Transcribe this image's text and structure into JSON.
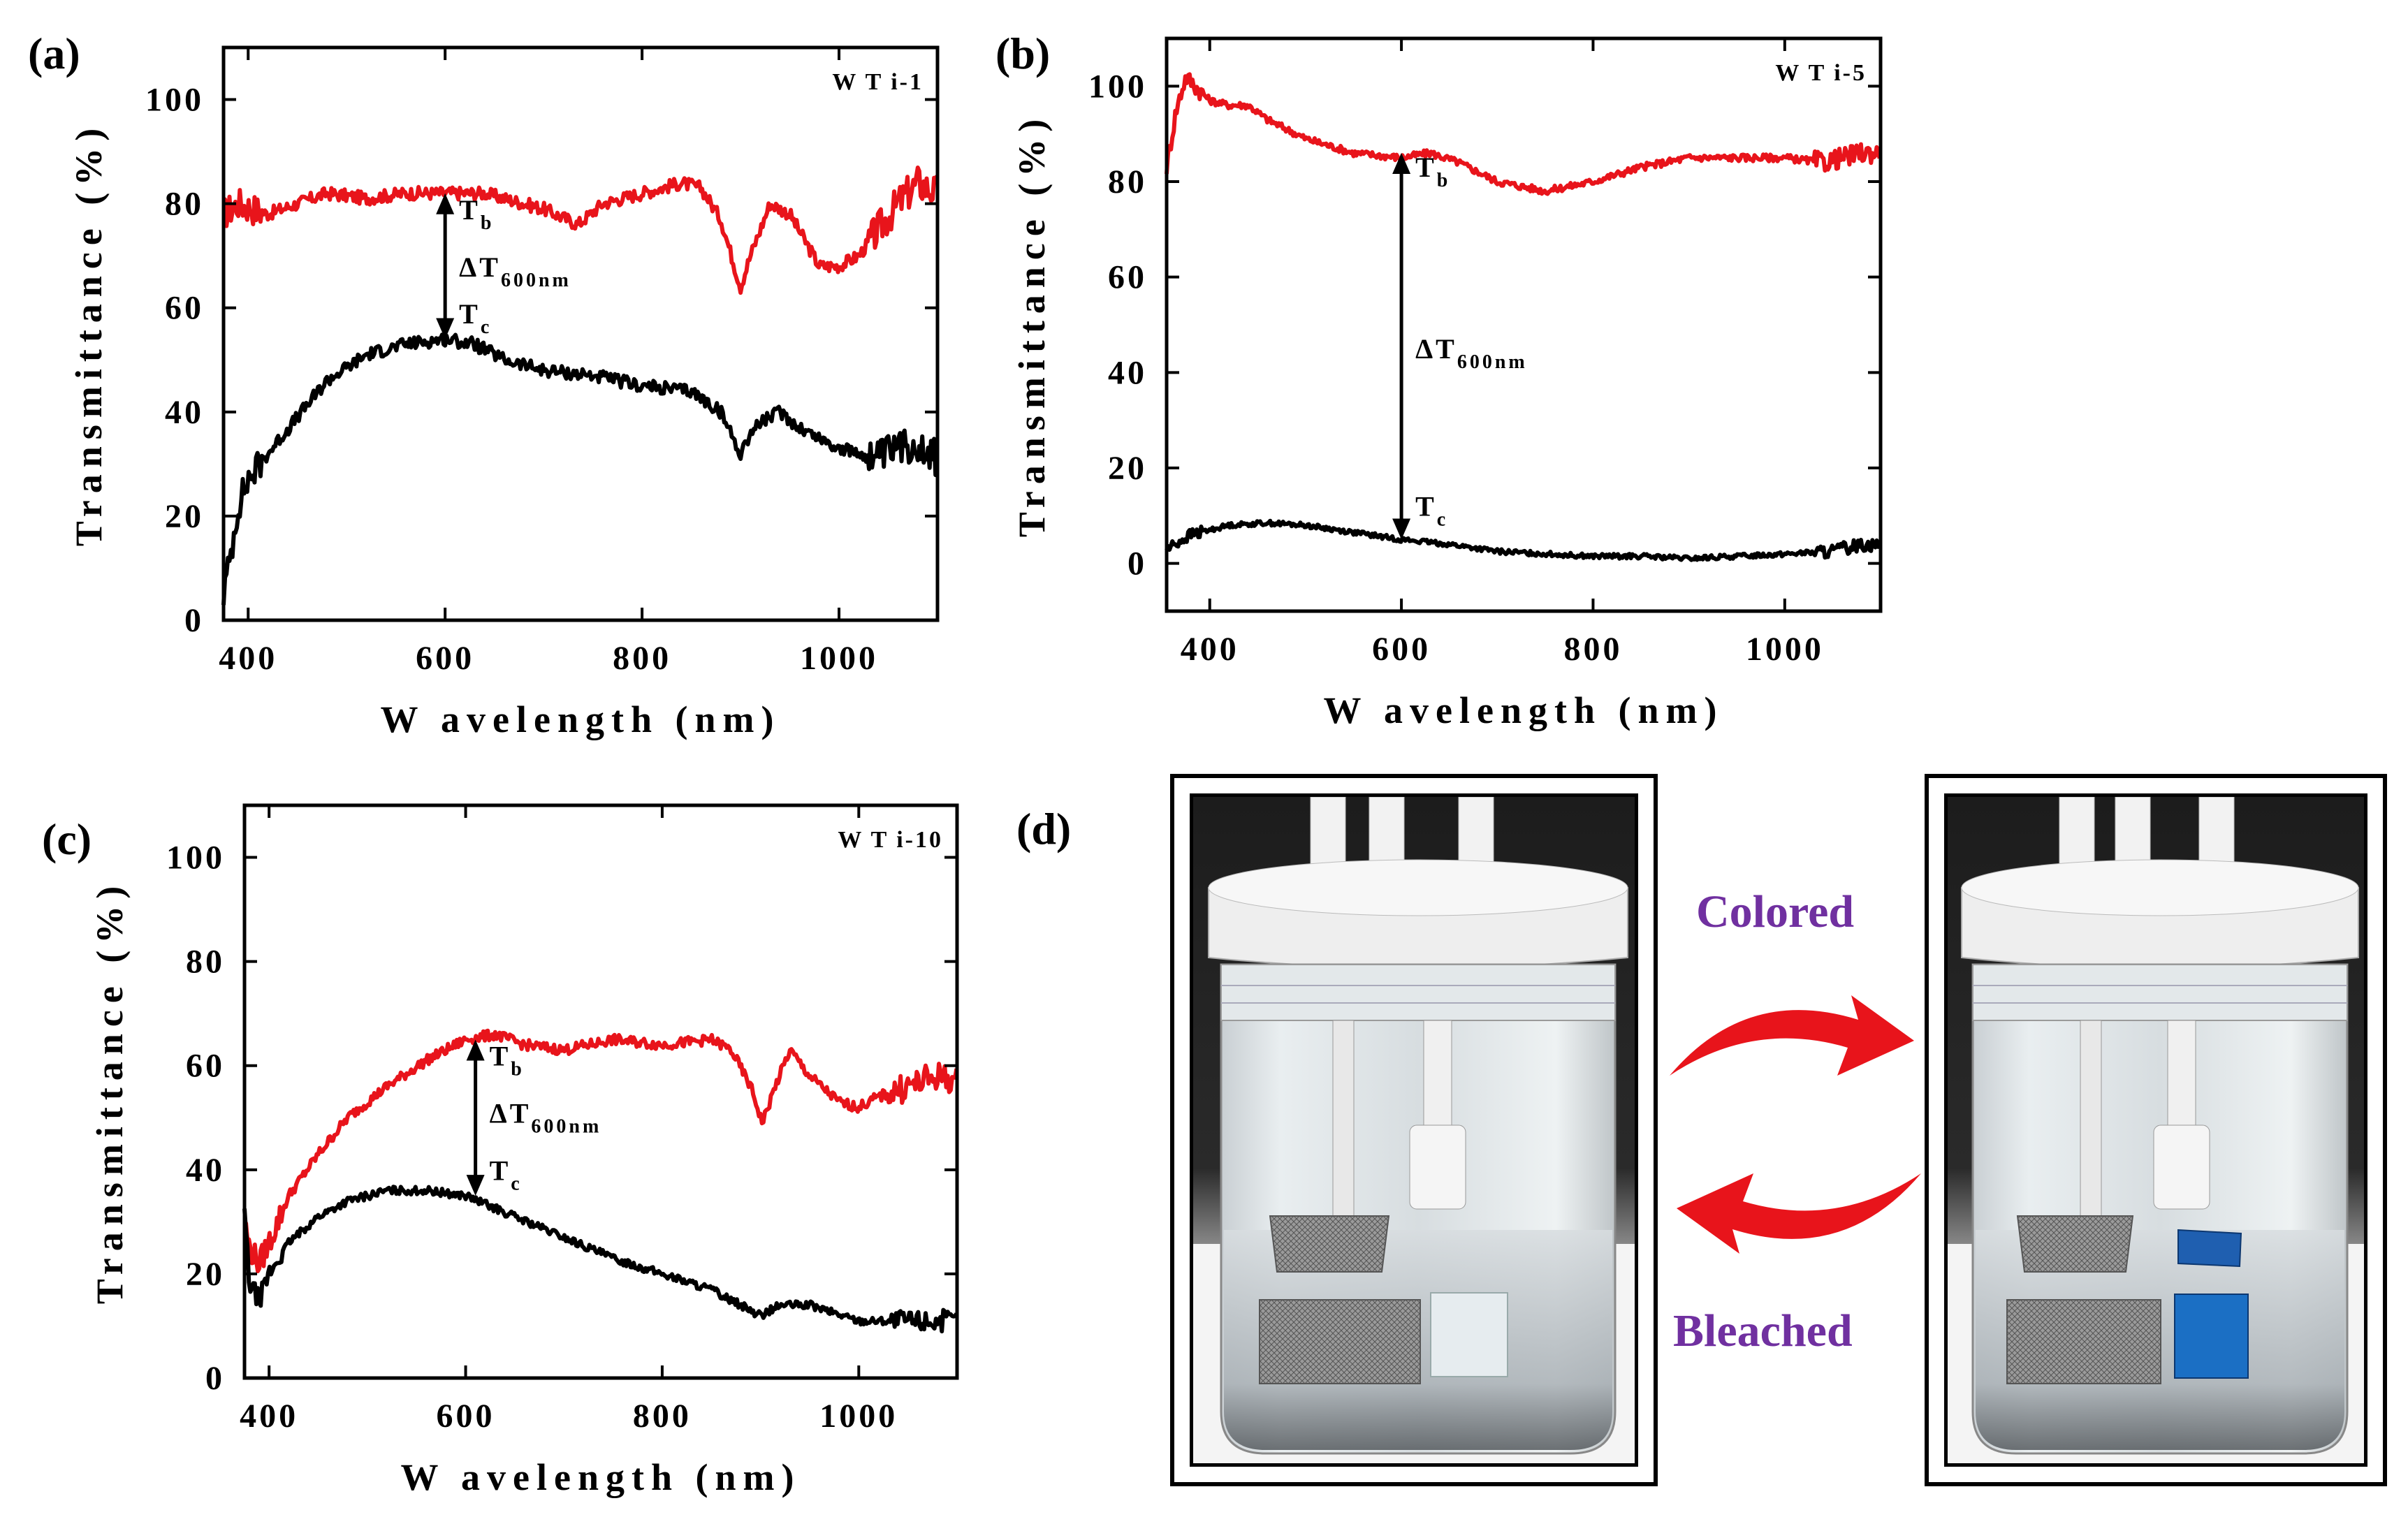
{
  "panels": [
    {
      "label": "(a)",
      "sample": "W T i-1",
      "chart_data": {
        "type": "line",
        "xlabel": "W avelength (nm)",
        "ylabel": "Transmittance (%)",
        "xlim": [
          375,
          1100
        ],
        "ylim": [
          0,
          110
        ],
        "xticks": [
          400,
          600,
          800,
          1000
        ],
        "yticks": [
          0,
          20,
          40,
          60,
          80,
          100
        ],
        "series": [
          {
            "color": "#e8141b",
            "noise": 2.5,
            "x": [
              375,
              390,
              420,
              450,
              480,
              520,
              560,
              600,
              640,
              680,
              700,
              735,
              760,
              800,
              840,
              860,
              880,
              900,
              910,
              930,
              950,
              980,
              1000,
              1020,
              1040,
              1060,
              1080,
              1100
            ],
            "y": [
              78,
              80,
              78,
              80,
              82,
              81,
              82,
              82,
              82,
              80,
              79,
              76,
              80,
              82,
              84,
              83,
              77,
              64,
              70,
              80,
              78,
              68,
              68,
              70,
              75,
              80,
              84,
              82
            ]
          },
          {
            "color": "#000000",
            "noise": 2.5,
            "x": [
              375,
              380,
              390,
              400,
              420,
              450,
              480,
              520,
              560,
              600,
              630,
              660,
              700,
              750,
              800,
              850,
              880,
              900,
              910,
              920,
              940,
              960,
              1000,
              1040,
              1060,
              1080,
              1100
            ],
            "y": [
              5,
              10,
              22,
              27,
              32,
              39,
              46,
              51,
              53,
              54,
              53,
              50,
              48,
              47,
              45,
              44,
              40,
              32,
              36,
              38,
              40,
              37,
              33,
              31,
              33,
              34,
              31
            ]
          }
        ],
        "annotations": {
          "arrow_x": 600,
          "arrow_y_top": 82,
          "arrow_y_bottom": 54,
          "tb": "T",
          "tb_sub": "b",
          "dt": "ΔT",
          "dt_sub": "600nm",
          "tc": "T",
          "tc_sub": "c",
          "tb_y": 77,
          "dt_y": 66,
          "tc_y": 57
        }
      }
    },
    {
      "label": "(b)",
      "sample": "W T i-5",
      "chart_data": {
        "type": "line",
        "xlabel": "W avelength (nm)",
        "ylabel": "Transmittance (%)",
        "xlim": [
          355,
          1100
        ],
        "ylim": [
          -10,
          110
        ],
        "xticks": [
          400,
          600,
          800,
          1000
        ],
        "yticks": [
          0,
          20,
          40,
          60,
          80,
          100
        ],
        "series": [
          {
            "color": "#e8141b",
            "noise": 1.5,
            "x": [
              355,
              365,
              375,
              385,
              400,
              420,
              440,
              460,
              500,
              550,
              600,
              630,
              660,
              700,
              750,
              800,
              850,
              900,
              950,
              1000,
              1040,
              1060,
              1080,
              1100
            ],
            "y": [
              83,
              95,
              102,
              100,
              97,
              96,
              96,
              93,
              89,
              86,
              85,
              86,
              84,
              80,
              78,
              80,
              83,
              85,
              85,
              85,
              84,
              85,
              86,
              86
            ]
          },
          {
            "color": "#000000",
            "noise": 1.0,
            "x": [
              355,
              380,
              420,
              460,
              500,
              550,
              600,
              650,
              700,
              750,
              800,
              850,
              900,
              950,
              1000,
              1050,
              1080,
              1100
            ],
            "y": [
              3,
              6,
              8,
              8.5,
              8,
              6.5,
              5,
              4,
              2.5,
              2,
              1.5,
              1.5,
              1,
              1.5,
              2,
              2.5,
              4,
              4
            ]
          }
        ],
        "annotations": {
          "arrow_x": 600,
          "arrow_y_top": 86,
          "arrow_y_bottom": 5,
          "tb": "T",
          "tb_sub": "b",
          "dt": "ΔT",
          "dt_sub": "600nm",
          "tc": "T",
          "tc_sub": "c",
          "tb_y": 81,
          "dt_y": 43,
          "tc_y": 10
        }
      }
    },
    {
      "label": "(c)",
      "sample": "W T i-10",
      "chart_data": {
        "type": "line",
        "xlabel": "W avelength (nm)",
        "ylabel": "Transmittance (%)",
        "xlim": [
          375,
          1100
        ],
        "ylim": [
          0,
          110
        ],
        "xticks": [
          400,
          600,
          800,
          1000
        ],
        "yticks": [
          0,
          20,
          40,
          60,
          80,
          100
        ],
        "series": [
          {
            "color": "#e8141b",
            "noise": 2.0,
            "x": [
              375,
              380,
              390,
              400,
              420,
              450,
              480,
              520,
              560,
              600,
              630,
              660,
              700,
              750,
              800,
              850,
              870,
              890,
              902,
              915,
              930,
              950,
              980,
              1000,
              1020,
              1050,
              1080,
              1100
            ],
            "y": [
              30,
              25,
              22,
              26,
              35,
              43,
              50,
              56,
              61,
              65,
              66,
              64,
              63,
              65,
              64,
              65,
              63,
              56,
              49,
              56,
              63,
              58,
              53,
              52,
              54,
              56,
              58,
              57
            ]
          },
          {
            "color": "#000000",
            "noise": 1.5,
            "x": [
              375,
              380,
              390,
              400,
              420,
              450,
              480,
              520,
              560,
              600,
              650,
              700,
              750,
              800,
              850,
              880,
              900,
              920,
              950,
              1000,
              1050,
              1100
            ],
            "y": [
              32,
              18,
              15,
              20,
              26,
              31,
              34,
              36,
              36,
              35,
              31,
              27,
              23,
              20,
              17,
              14,
              12,
              14,
              14,
              11,
              11,
              11
            ]
          }
        ],
        "annotations": {
          "arrow_x": 610,
          "arrow_y_top": 65,
          "arrow_y_bottom": 35,
          "tb": "T",
          "tb_sub": "b",
          "dt": "ΔT",
          "dt_sub": "600nm",
          "tc": "T",
          "tc_sub": "c",
          "tb_y": 60,
          "dt_y": 49,
          "tc_y": 38
        }
      }
    }
  ],
  "photo_panel": {
    "label": "(d)",
    "top_text": "Colored",
    "bottom_text": "Bleached",
    "label_color": "#7030a0",
    "arrow_color": "#e8141b"
  }
}
